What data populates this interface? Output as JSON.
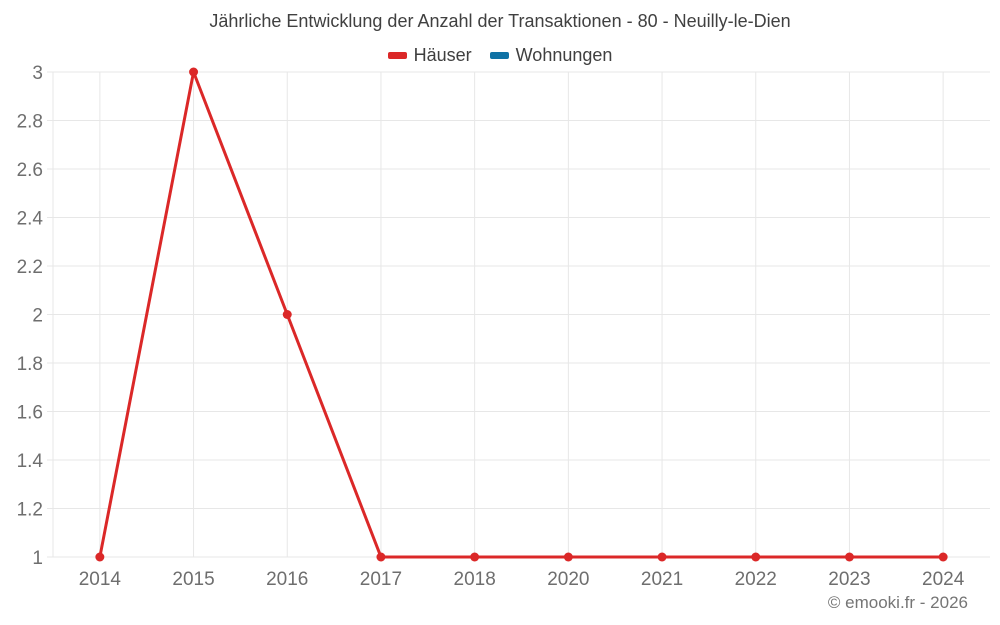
{
  "title": "Jährliche Entwicklung der Anzahl der Transaktionen - 80 - Neuilly-le-Dien",
  "footer": "© emooki.fr - 2026",
  "legend": {
    "items": [
      {
        "label": "Häuser",
        "color": "#db2828"
      },
      {
        "label": "Wohnungen",
        "color": "#0f72a5"
      }
    ]
  },
  "chart_data": {
    "type": "line",
    "title": "Jährliche Entwicklung der Anzahl der Transaktionen - 80 - Neuilly-le-Dien",
    "xlabel": "",
    "ylabel": "",
    "categories": [
      "2014",
      "2015",
      "2016",
      "2017",
      "2018",
      "2020",
      "2021",
      "2022",
      "2023",
      "2024"
    ],
    "series": [
      {
        "name": "Häuser",
        "color": "#db2828",
        "values": [
          1,
          3,
          2,
          1,
          1,
          1,
          1,
          1,
          1,
          1
        ]
      },
      {
        "name": "Wohnungen",
        "color": "#0f72a5",
        "values": []
      }
    ],
    "ylim": [
      1,
      3
    ],
    "yticks": [
      1,
      1.2,
      1.4,
      1.6,
      1.8,
      2,
      2.2,
      2.4,
      2.6,
      2.8,
      3
    ],
    "ytick_labels": [
      "1",
      "1.2",
      "1.4",
      "1.6",
      "1.8",
      "2",
      "2.2",
      "2.4",
      "2.6",
      "2.8",
      "3"
    ],
    "grid": true,
    "legend_position": "top",
    "marker": "circle"
  },
  "colors": {
    "grid": "#e7e7e7",
    "tick_label": "#6e6e6e",
    "title_text": "#404040",
    "footer_text": "#757575"
  }
}
